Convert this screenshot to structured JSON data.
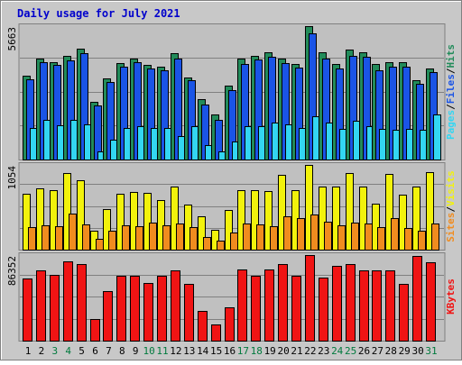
{
  "chart_data": {
    "type": "bar",
    "title": "Daily usage for July 2021",
    "categories": [
      "1",
      "2",
      "3",
      "4",
      "5",
      "6",
      "7",
      "8",
      "9",
      "10",
      "11",
      "12",
      "13",
      "14",
      "15",
      "16",
      "17",
      "18",
      "19",
      "20",
      "21",
      "22",
      "23",
      "24",
      "25",
      "26",
      "27",
      "28",
      "29",
      "30",
      "31"
    ],
    "weekend_days": [
      "3",
      "4",
      "10",
      "11",
      "17",
      "18",
      "24",
      "25",
      "31"
    ],
    "grid": true,
    "panels": [
      {
        "name": "hits-files-pages",
        "max_label": "5663",
        "ylim": [
          0,
          5663
        ],
        "legend": [
          "Pages",
          "Files",
          "Hits"
        ],
        "series": [
          {
            "name": "Hits",
            "color": "#228b5a",
            "values": [
              3550,
              4300,
              4150,
              4400,
              4700,
              2450,
              3450,
              4100,
              4300,
              4000,
              3950,
              4500,
              3500,
              2550,
              1900,
              3150,
              4300,
              4400,
              4550,
              4300,
              4050,
              5663,
              4550,
              4050,
              4650,
              4550,
              4050,
              4150,
              4150,
              3350,
              3850
            ]
          },
          {
            "name": "Files",
            "color": "#1a54e6",
            "values": [
              3400,
              4150,
              4000,
              4200,
              4500,
              2300,
              3300,
              3950,
              4150,
              3850,
              3800,
              4300,
              3350,
              2350,
              1700,
              2950,
              4050,
              4250,
              4350,
              4100,
              3900,
              5350,
              4300,
              3850,
              4400,
              4350,
              3800,
              3950,
              3950,
              3200,
              3700
            ]
          },
          {
            "name": "Pages",
            "color": "#33d6f2",
            "values": [
              1350,
              1700,
              1450,
              1700,
              1500,
              350,
              850,
              1350,
              1400,
              1350,
              1350,
              1000,
              1400,
              600,
              350,
              750,
              1400,
              1400,
              1550,
              1500,
              1350,
              1850,
              1550,
              1300,
              1650,
              1400,
              1300,
              1250,
              1300,
              1250,
              1900
            ]
          }
        ]
      },
      {
        "name": "visits-sites",
        "max_label": "1054",
        "ylim": [
          0,
          1054
        ],
        "legend": [
          "Sites",
          "Visits"
        ],
        "series": [
          {
            "name": "Visits",
            "color": "#f2f20c",
            "values": [
              700,
              760,
              740,
              950,
              860,
              230,
              500,
              700,
              720,
              710,
              620,
              780,
              560,
              420,
              250,
              490,
              740,
              740,
              730,
              930,
              740,
              1054,
              780,
              790,
              950,
              780,
              570,
              940,
              680,
              790,
              960
            ]
          },
          {
            "name": "Sites",
            "color": "#f08c1f",
            "values": [
              280,
              300,
              290,
              450,
              310,
              130,
              240,
              300,
              290,
              340,
              300,
              320,
              280,
              160,
              110,
              210,
              320,
              310,
              290,
              420,
              390,
              440,
              350,
              300,
              340,
              330,
              280,
              390,
              270,
              240,
              330
            ]
          }
        ]
      },
      {
        "name": "kbytes",
        "max_label": "86352",
        "ylim": [
          0,
          86352
        ],
        "legend": [
          "KBytes"
        ],
        "series": [
          {
            "name": "KBytes",
            "color": "#f01414",
            "values": [
              63000,
              71000,
              66000,
              80000,
              77000,
              22000,
              50000,
              65000,
              65000,
              58000,
              65000,
              71000,
              57000,
              30000,
              16000,
              34000,
              72000,
              65000,
              72000,
              77000,
              65000,
              86352,
              64000,
              75000,
              77000,
              71000,
              71000,
              71000,
              57000,
              85000,
              79000
            ]
          }
        ]
      }
    ]
  }
}
